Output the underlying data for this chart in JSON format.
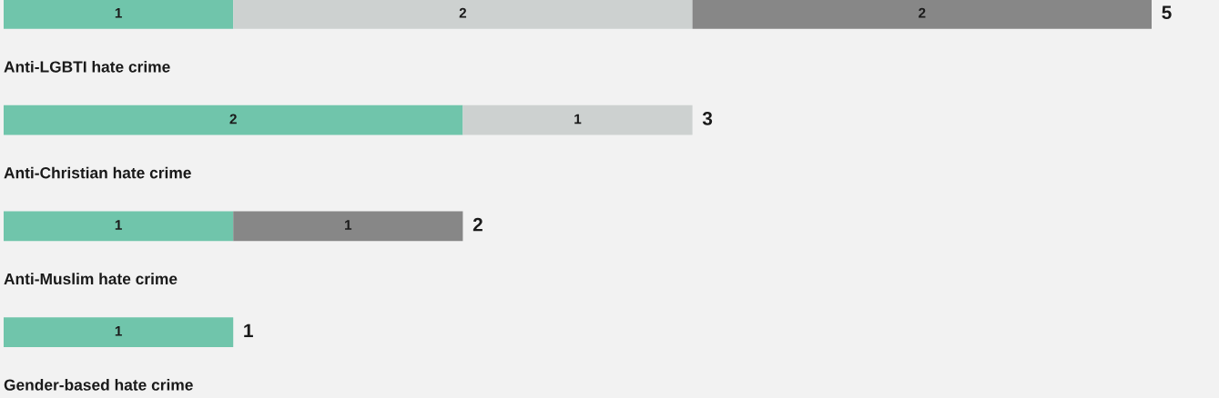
{
  "chart_data": {
    "type": "bar",
    "orientation": "horizontal",
    "stacked": true,
    "data_labels": true,
    "categories": [
      "Anti-LGBTI hate crime",
      "Anti-Christian hate crime",
      "Anti-Muslim hate crime",
      "Gender-based hate crime"
    ],
    "series": [
      {
        "color": "#70c5ab",
        "values": [
          1,
          2,
          1,
          1
        ]
      },
      {
        "color": "#cdd1d0",
        "values": [
          2,
          1,
          null,
          null
        ]
      },
      {
        "color": "#878787",
        "values": [
          2,
          null,
          1,
          null
        ]
      }
    ],
    "totals": [
      "5",
      "3",
      "2",
      "1"
    ]
  }
}
